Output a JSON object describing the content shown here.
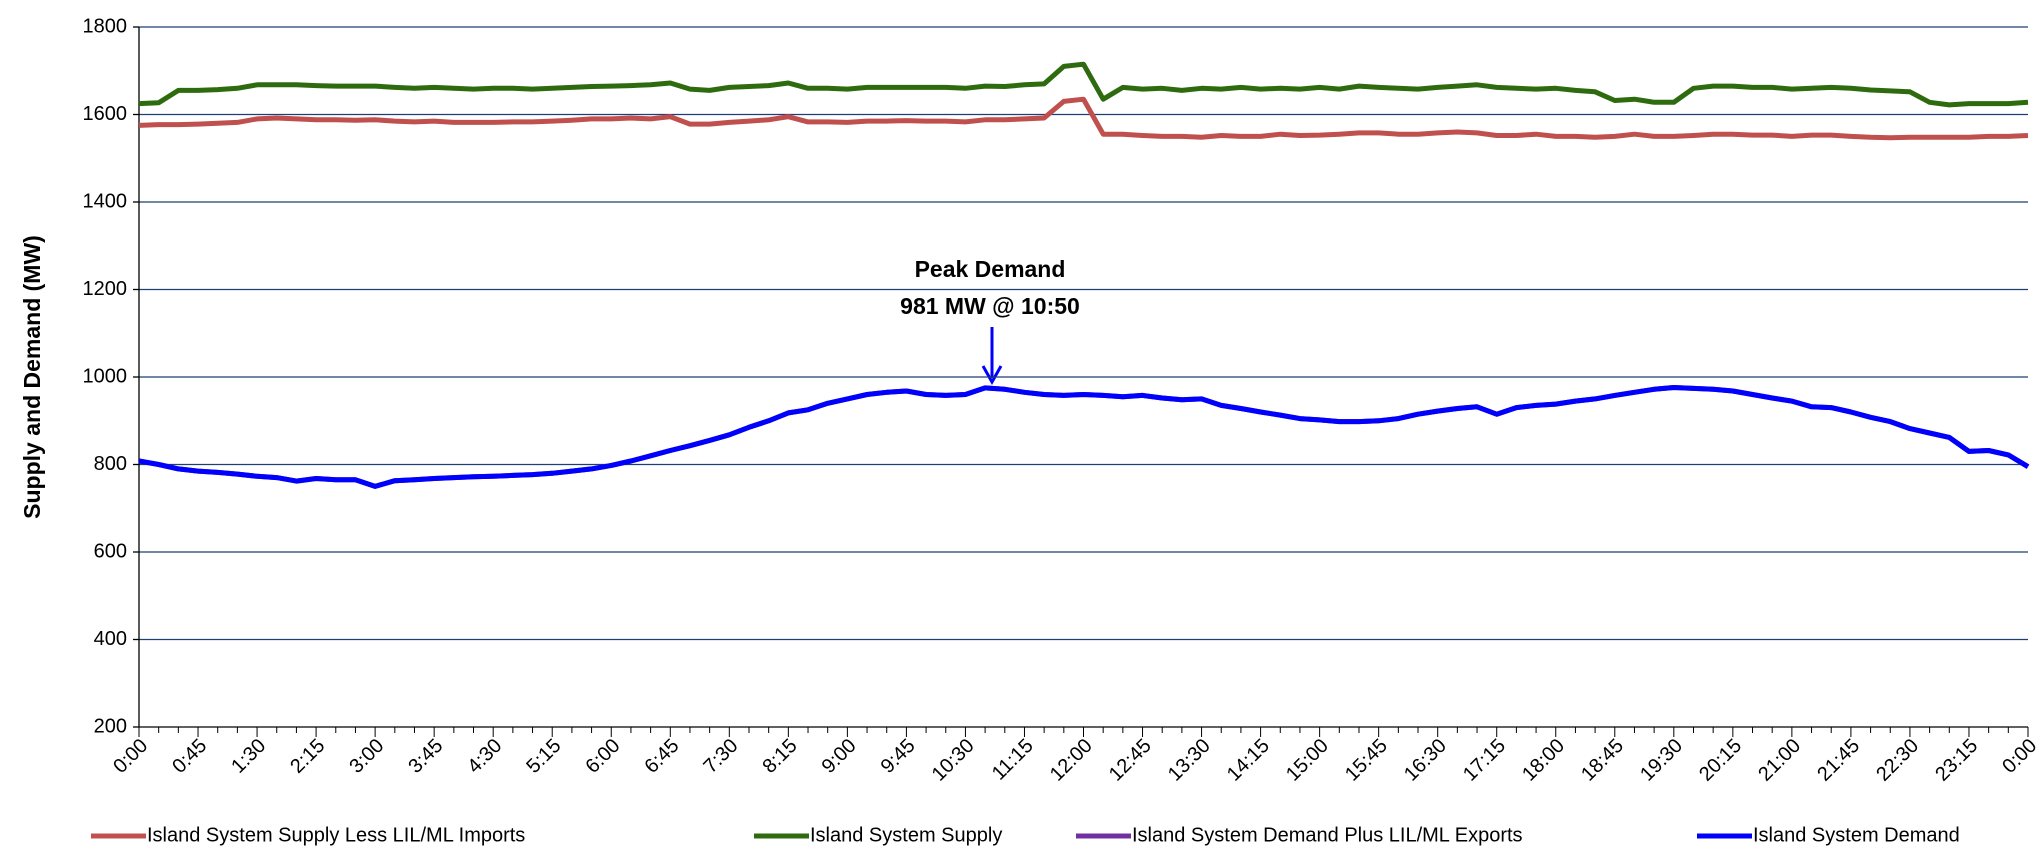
{
  "chart_data": {
    "type": "line",
    "ylabel": "Supply and Demand (MW)",
    "annotation": [
      "Peak Demand",
      "981 MW @ 10:50"
    ],
    "categories": [
      "0:00",
      null,
      null,
      "0:45",
      null,
      null,
      "1:30",
      null,
      null,
      "2:15",
      null,
      null,
      "3:00",
      null,
      null,
      "3:45",
      null,
      null,
      "4:30",
      null,
      null,
      "5:15",
      null,
      null,
      "6:00",
      null,
      null,
      "6:45",
      null,
      null,
      "7:30",
      null,
      null,
      "8:15",
      null,
      null,
      "9:00",
      null,
      null,
      "9:45",
      null,
      null,
      "10:30",
      null,
      null,
      "11:15",
      null,
      null,
      "12:00",
      null,
      null,
      "12:45",
      null,
      null,
      "13:30",
      null,
      null,
      "14:15",
      null,
      null,
      "15:00",
      null,
      null,
      "15:45",
      null,
      null,
      "16:30",
      null,
      null,
      "17:15",
      null,
      null,
      "18:00",
      null,
      null,
      "18:45",
      null,
      null,
      "19:30",
      null,
      null,
      "20:15",
      null,
      null,
      "21:00",
      null,
      null,
      "21:45",
      null,
      null,
      "22:30",
      null,
      null,
      "23:15",
      null,
      null,
      "0:00"
    ],
    "series": [
      {
        "name": "Island System Supply Less LIL/ML Imports",
        "color": "#c0504d",
        "values": [
          1575,
          1577,
          1577,
          1578,
          1580,
          1582,
          1590,
          1592,
          1590,
          1588,
          1588,
          1587,
          1588,
          1585,
          1583,
          1585,
          1582,
          1582,
          1582,
          1583,
          1583,
          1585,
          1587,
          1590,
          1590,
          1592,
          1590,
          1595,
          1578,
          1578,
          1582,
          1585,
          1588,
          1595,
          1583,
          1583,
          1582,
          1585,
          1585,
          1586,
          1585,
          1585,
          1583,
          1588,
          1588,
          1590,
          1592,
          1630,
          1635,
          1555,
          1555,
          1552,
          1550,
          1550,
          1548,
          1552,
          1550,
          1550,
          1555,
          1552,
          1553,
          1555,
          1558,
          1558,
          1555,
          1555,
          1558,
          1560,
          1558,
          1552,
          1552,
          1555,
          1550,
          1550,
          1548,
          1550,
          1555,
          1550,
          1550,
          1552,
          1555,
          1555,
          1553,
          1553,
          1550,
          1553,
          1553,
          1550,
          1548,
          1547,
          1548,
          1548,
          1548,
          1548,
          1550,
          1550,
          1552
        ]
      },
      {
        "name": "Island System Supply",
        "color": "#2e6b0e",
        "values": [
          1625,
          1627,
          1655,
          1655,
          1657,
          1660,
          1668,
          1668,
          1668,
          1666,
          1665,
          1665,
          1665,
          1662,
          1660,
          1662,
          1660,
          1658,
          1660,
          1660,
          1658,
          1660,
          1662,
          1664,
          1665,
          1666,
          1668,
          1672,
          1658,
          1655,
          1662,
          1664,
          1666,
          1672,
          1660,
          1660,
          1658,
          1662,
          1662,
          1662,
          1662,
          1662,
          1660,
          1665,
          1664,
          1668,
          1670,
          1710,
          1715,
          1635,
          1662,
          1658,
          1660,
          1655,
          1660,
          1658,
          1662,
          1658,
          1660,
          1658,
          1662,
          1658,
          1665,
          1662,
          1660,
          1658,
          1662,
          1665,
          1668,
          1662,
          1660,
          1658,
          1660,
          1655,
          1652,
          1632,
          1635,
          1628,
          1628,
          1660,
          1665,
          1665,
          1662,
          1662,
          1658,
          1660,
          1662,
          1660,
          1656,
          1654,
          1652,
          1628,
          1622,
          1625,
          1625,
          1625,
          1628
        ]
      },
      {
        "name": "Island System Demand Plus LIL/ML Exports",
        "color": "#7030a0",
        "values": [
          808,
          800,
          790,
          785,
          782,
          778,
          773,
          770,
          762,
          768,
          765,
          765,
          750,
          763,
          765,
          768,
          770,
          772,
          773,
          775,
          777,
          780,
          785,
          790,
          798,
          808,
          820,
          832,
          843,
          855,
          868,
          885,
          900,
          918,
          925,
          940,
          950,
          960,
          965,
          968,
          960,
          958,
          960,
          975,
          972,
          965,
          960,
          958,
          960,
          958,
          955,
          958,
          952,
          948,
          950,
          935,
          928,
          920,
          913,
          905,
          902,
          898,
          898,
          900,
          905,
          915,
          922,
          928,
          932,
          915,
          930,
          935,
          938,
          945,
          950,
          958,
          965,
          972,
          976,
          974,
          972,
          968,
          960,
          952,
          945,
          932,
          930,
          920,
          908,
          898,
          882,
          872,
          862,
          830,
          832,
          822,
          795
        ]
      },
      {
        "name": "Island System Demand",
        "color": "#0000ff",
        "values": [
          808,
          800,
          790,
          785,
          782,
          778,
          773,
          770,
          762,
          768,
          765,
          765,
          750,
          763,
          765,
          768,
          770,
          772,
          773,
          775,
          777,
          780,
          785,
          790,
          798,
          808,
          820,
          832,
          843,
          855,
          868,
          885,
          900,
          918,
          925,
          940,
          950,
          960,
          965,
          968,
          960,
          958,
          960,
          975,
          972,
          965,
          960,
          958,
          960,
          958,
          955,
          958,
          952,
          948,
          950,
          935,
          928,
          920,
          913,
          905,
          902,
          898,
          898,
          900,
          905,
          915,
          922,
          928,
          932,
          915,
          930,
          935,
          938,
          945,
          950,
          958,
          965,
          972,
          976,
          974,
          972,
          968,
          960,
          952,
          945,
          932,
          930,
          920,
          908,
          898,
          882,
          872,
          862,
          830,
          832,
          822,
          795
        ]
      }
    ],
    "ylim": [
      200,
      1800
    ],
    "yticks": [
      200,
      400,
      600,
      800,
      1000,
      1200,
      1400,
      1600,
      1800
    ],
    "grid": true
  }
}
